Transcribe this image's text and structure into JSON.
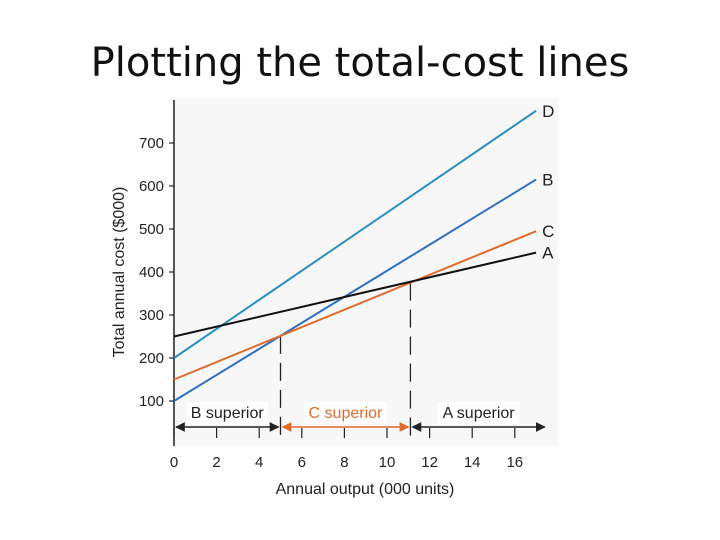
{
  "slide": {
    "title": "Plotting the total-cost lines"
  },
  "chart_data": {
    "type": "line",
    "title": "",
    "xlabel": "Annual output (000 units)",
    "ylabel": "Total annual cost ($000)",
    "xlim": [
      0,
      18
    ],
    "ylim": [
      0,
      800
    ],
    "x_ticks": [
      0,
      2,
      4,
      6,
      8,
      10,
      12,
      14,
      16
    ],
    "y_ticks": [
      100,
      200,
      300,
      400,
      500,
      600,
      700
    ],
    "series": [
      {
        "name": "D",
        "color": "#2a8fbf",
        "x": [
          0,
          17
        ],
        "y": [
          200,
          775
        ]
      },
      {
        "name": "B",
        "color": "#2f6fbf",
        "x": [
          0,
          17
        ],
        "y": [
          100,
          615
        ]
      },
      {
        "name": "C",
        "color": "#e06a2a",
        "x": [
          0,
          17
        ],
        "y": [
          150,
          495
        ]
      },
      {
        "name": "A",
        "color": "#111111",
        "x": [
          0,
          17
        ],
        "y": [
          250,
          445
        ]
      }
    ],
    "breakeven_x": [
      5,
      11.1
    ],
    "regions": [
      {
        "label": "B superior",
        "from": 0,
        "to": 5,
        "color": "#222222"
      },
      {
        "label": "C superior",
        "from": 5,
        "to": 11.1,
        "color": "#e06a2a"
      },
      {
        "label": "A superior",
        "from": 11.1,
        "to": 17.5,
        "color": "#222222"
      }
    ],
    "grid": false
  }
}
